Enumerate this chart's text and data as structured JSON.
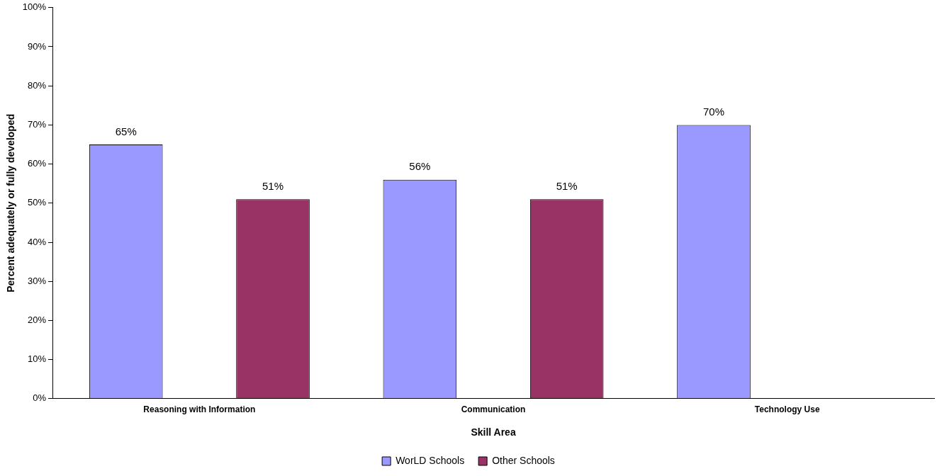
{
  "chart_data": {
    "type": "bar",
    "xlabel": "Skill Area",
    "ylabel": "Percent adequately or fully developed",
    "categories": [
      "Reasoning with Information",
      "Communication",
      "Technology Use"
    ],
    "series": [
      {
        "name": "WorLD Schools",
        "color": "#9999ff",
        "values": [
          65,
          56,
          70
        ],
        "value_labels": [
          "65%",
          "56%",
          "70%"
        ]
      },
      {
        "name": "Other Schools",
        "color": "#993366",
        "values": [
          51,
          51,
          null
        ],
        "value_labels": [
          "51%",
          "51%",
          null
        ]
      }
    ],
    "ylim": [
      0,
      100
    ],
    "yticks": [
      {
        "value": 0,
        "label": "0%"
      },
      {
        "value": 10,
        "label": "10%"
      },
      {
        "value": 20,
        "label": "20%"
      },
      {
        "value": 30,
        "label": "30%"
      },
      {
        "value": 40,
        "label": "40%"
      },
      {
        "value": 50,
        "label": "50%"
      },
      {
        "value": 60,
        "label": "60%"
      },
      {
        "value": 70,
        "label": "70%"
      },
      {
        "value": 80,
        "label": "80%"
      },
      {
        "value": 90,
        "label": "90%"
      },
      {
        "value": 100,
        "label": "100%"
      }
    ],
    "grid": false,
    "legend": "bottom"
  }
}
